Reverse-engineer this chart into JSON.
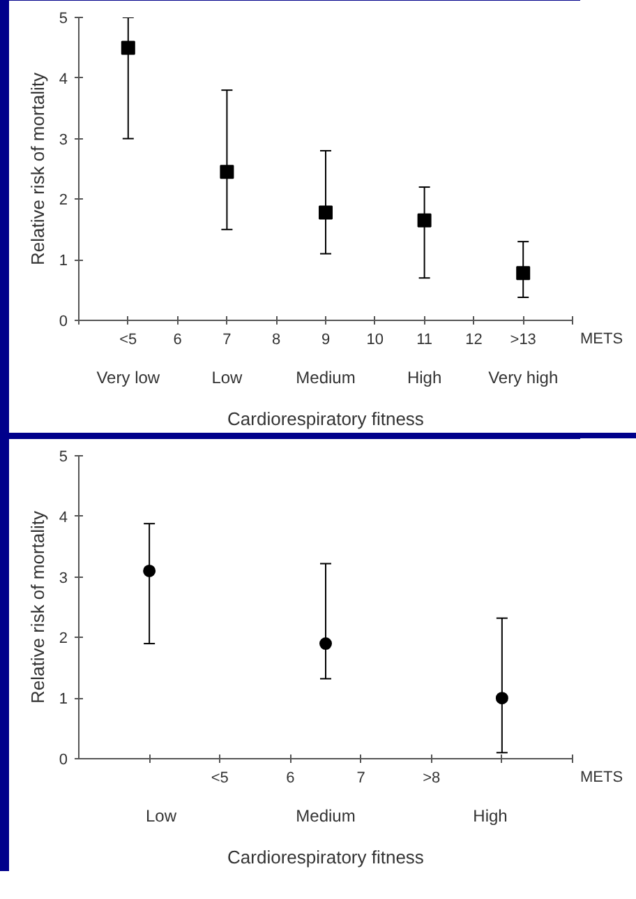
{
  "chart_data": [
    {
      "type": "scatter",
      "xlabel": "Cardiorespiratory fitness",
      "ylabel": "Relative risk of mortality",
      "marker": "square",
      "x": [
        5,
        7,
        9,
        11,
        13
      ],
      "values": [
        4.5,
        2.45,
        1.78,
        1.65,
        0.78
      ],
      "errors": [
        [
          3.0,
          5.0
        ],
        [
          1.5,
          3.8
        ],
        [
          1.1,
          2.8
        ],
        [
          0.7,
          2.2
        ],
        [
          0.38,
          1.3
        ]
      ],
      "color": "#000000",
      "xlim": [
        4,
        14
      ],
      "xticks": [
        {
          "value": 4,
          "label": null
        },
        {
          "value": 5,
          "label": "<5"
        },
        6,
        7,
        8,
        9,
        10,
        11,
        12,
        {
          "value": 13,
          "label": ">13"
        },
        {
          "value": 14,
          "label": null
        }
      ],
      "ylim": [
        0,
        5
      ],
      "yticks": [
        0,
        1,
        2,
        3,
        4,
        5
      ],
      "grid": false,
      "annotations": [
        "METS",
        "Very low",
        "Low",
        "Medium",
        "High",
        "Very high"
      ]
    },
    {
      "type": "scatter",
      "xlabel": "Cardiorespiratory fitness",
      "ylabel": "Relative risk of mortality",
      "marker": "circle",
      "x": [
        4,
        6.5,
        9
      ],
      "values": [
        3.1,
        1.9,
        1.0
      ],
      "errors": [
        [
          1.9,
          3.88
        ],
        [
          1.32,
          3.22
        ],
        [
          0.1,
          2.32
        ]
      ],
      "color": "#000000",
      "xlim": [
        3,
        10
      ],
      "xticks": [
        {
          "value": 4,
          "label": null
        },
        {
          "value": 5,
          "label": "<5"
        },
        6,
        7,
        {
          "value": 8,
          "label": ">8"
        },
        {
          "value": 9,
          "label": null
        },
        {
          "value": 10,
          "label": null
        }
      ],
      "ylim": [
        0,
        5
      ],
      "yticks": [
        0,
        1,
        2,
        3,
        4,
        5
      ],
      "grid": false,
      "annotations": [
        "METS",
        "Low",
        "Medium",
        "High"
      ]
    }
  ]
}
